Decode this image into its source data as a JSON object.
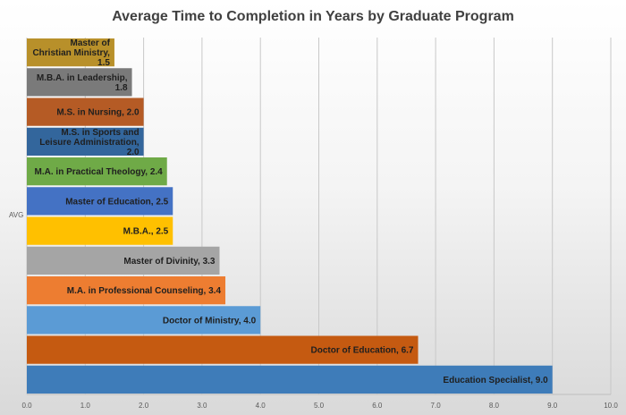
{
  "chart_data": {
    "type": "bar",
    "orientation": "horizontal",
    "title": "Average Time to Completion in Years by Graduate Program",
    "xlabel": "",
    "ylabel": "AVG",
    "xlim": [
      0,
      10
    ],
    "x_ticks": [
      "0.0",
      "1.0",
      "2.0",
      "3.0",
      "4.0",
      "5.0",
      "6.0",
      "7.0",
      "8.0",
      "9.0",
      "10.0"
    ],
    "grid": true,
    "legend": "none",
    "series": [
      {
        "label": "Master of Christian Ministry, 1.5",
        "value": 1.5,
        "color": "#B8902A"
      },
      {
        "label": "M.B.A. in Leadership, 1.8",
        "value": 1.8,
        "color": "#7A7A7A"
      },
      {
        "label": "M.S. in Nursing, 2.0",
        "value": 2.0,
        "color": "#B55B25"
      },
      {
        "label": "M.S. in Sports and Leisure Administration, 2.0",
        "value": 2.0,
        "color": "#33669C"
      },
      {
        "label": "M.A. in Practical Theology, 2.4",
        "value": 2.4,
        "color": "#6FAA47"
      },
      {
        "label": "Master of Education, 2.5",
        "value": 2.5,
        "color": "#4472C4"
      },
      {
        "label": "M.B.A., 2.5",
        "value": 2.5,
        "color": "#FFC000"
      },
      {
        "label": "Master of Divinity, 3.3",
        "value": 3.3,
        "color": "#A5A5A5"
      },
      {
        "label": "M.A. in Professional Counseling, 3.4",
        "value": 3.4,
        "color": "#ED7D31"
      },
      {
        "label": "Doctor of Ministry, 4.0",
        "value": 4.0,
        "color": "#5B9BD5"
      },
      {
        "label": "Doctor of Education, 6.7",
        "value": 6.7,
        "color": "#C55A11"
      },
      {
        "label": "Education Specialist, 9.0",
        "value": 9.0,
        "color": "#3E7CB9"
      }
    ]
  }
}
